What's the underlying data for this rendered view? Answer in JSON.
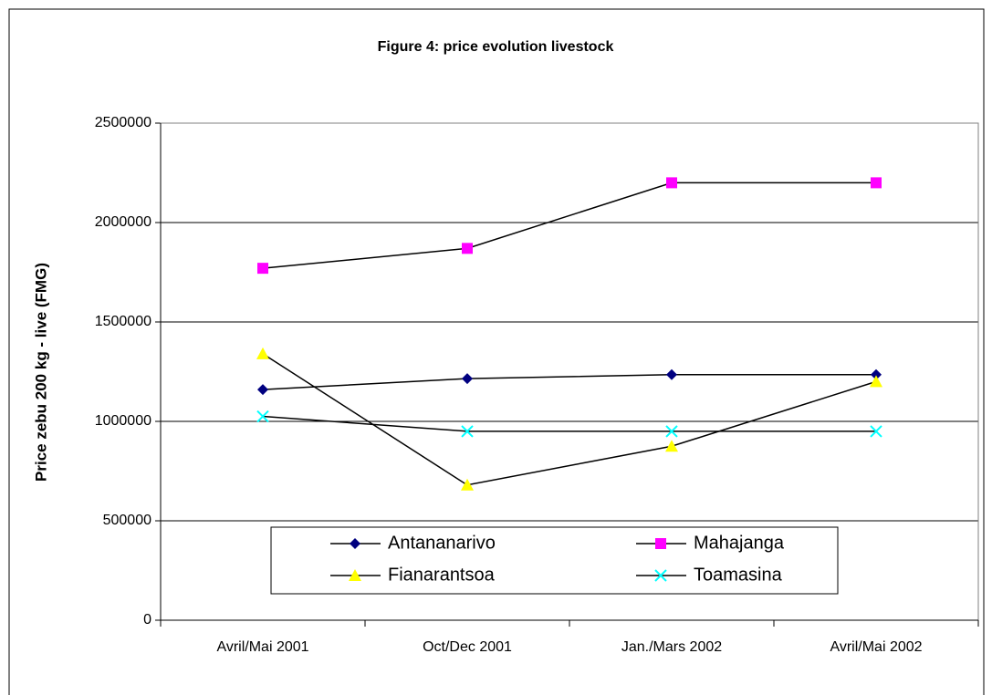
{
  "chart_data": {
    "type": "line",
    "title": "Figure 4: price evolution livestock",
    "y_label": "Price zebu 200 kg - live (FMG)",
    "categories": [
      "Avril/Mai 2001",
      "Oct/Dec 2001",
      "Jan./Mars 2002",
      "Avril/Mai 2002"
    ],
    "series": [
      {
        "name": "Antananarivo",
        "color": "#000080",
        "marker": "diamond",
        "values": [
          1160000,
          1215000,
          1235000,
          1235000
        ]
      },
      {
        "name": "Mahajanga",
        "color": "#ff00ff",
        "marker": "square",
        "values": [
          1770000,
          1870000,
          2200000,
          2200000
        ]
      },
      {
        "name": "Fianarantsoa",
        "color": "#ffff00",
        "marker": "triangle",
        "values": [
          1340000,
          680000,
          875000,
          1200000
        ]
      },
      {
        "name": "Toamasina",
        "color": "#00ffff",
        "marker": "x",
        "values": [
          1025000,
          950000,
          950000,
          950000
        ]
      }
    ],
    "line_color": "#000000",
    "ylim": [
      0,
      2500000
    ],
    "yticks": [
      0,
      500000,
      1000000,
      1500000,
      2000000,
      2500000
    ],
    "grid": true
  }
}
